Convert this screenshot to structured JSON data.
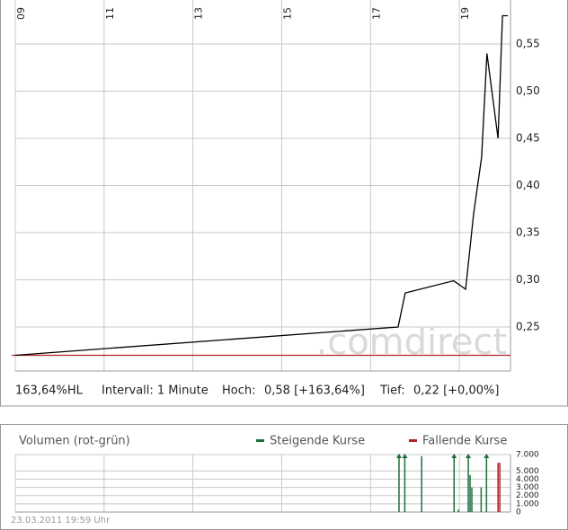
{
  "chart_data": [
    {
      "type": "line",
      "xlim": [
        9,
        20.15
      ],
      "xticks": [
        {
          "value": 9,
          "label": "09"
        },
        {
          "value": 11,
          "label": "11"
        },
        {
          "value": 13,
          "label": "13"
        },
        {
          "value": 15,
          "label": "15"
        },
        {
          "value": 17,
          "label": "17"
        },
        {
          "value": 19,
          "label": "19"
        }
      ],
      "ylim": [
        0.2033,
        0.5967
      ],
      "yticks": [
        {
          "value": 0.25,
          "label": "0,25"
        },
        {
          "value": 0.3,
          "label": "0,30"
        },
        {
          "value": 0.35,
          "label": "0,35"
        },
        {
          "value": 0.4,
          "label": "0,40"
        },
        {
          "value": 0.45,
          "label": "0,45"
        },
        {
          "value": 0.5,
          "label": "0,50"
        },
        {
          "value": 0.55,
          "label": "0,55"
        }
      ],
      "grid": true,
      "series": [
        {
          "color": "#000000",
          "x": [
            9.0,
            17.62,
            17.78,
            18.87,
            19.14,
            19.32,
            19.5,
            19.62,
            19.87,
            19.97,
            20.09
          ],
          "values": [
            0.22,
            0.25,
            0.286,
            0.299,
            0.29,
            0.37,
            0.43,
            0.54,
            0.45,
            0.58,
            0.58
          ]
        }
      ],
      "reference_line": {
        "value": 0.22,
        "color": "#b22222"
      },
      "watermark": ".comdirect"
    },
    {
      "type": "bar",
      "title": "Volumen (rot-grün)",
      "xlim": [
        9,
        20.15
      ],
      "ylim": [
        0,
        7000
      ],
      "yticks": [
        0,
        {
          "value": 1000,
          "label": "1.000"
        },
        {
          "value": 2000,
          "label": "2.000"
        },
        {
          "value": 3000,
          "label": "3.000"
        },
        {
          "value": 4000,
          "label": "4.000"
        },
        {
          "value": 5000,
          "label": "5.000"
        },
        {
          "value": 7000,
          "label": "7.000"
        }
      ],
      "grid": true,
      "series": [
        {
          "name": "Steigende Kurse",
          "color": "#1e6e3c",
          "x": [
            17.64,
            17.77,
            18.15,
            18.88,
            18.98,
            19.2,
            19.24,
            19.28,
            19.49,
            19.61
          ],
          "values": [
            7000,
            7000,
            6800,
            7000,
            300,
            7000,
            4500,
            3000,
            3000,
            7000
          ]
        },
        {
          "name": "Fallende Kurse",
          "color": "#b22222",
          "x": [
            19.87,
            19.91
          ],
          "values": [
            6000,
            6000
          ]
        }
      ]
    }
  ],
  "info": {
    "change": "163,64%HL",
    "interval": "Intervall: 1 Minute",
    "high_label": "Hoch:",
    "high_value": "0,58 [+163,64%]",
    "low_label": "Tief:",
    "low_value": "0,22 [+0,00%]"
  },
  "footer": "23.03.2011 19:59 Uhr"
}
